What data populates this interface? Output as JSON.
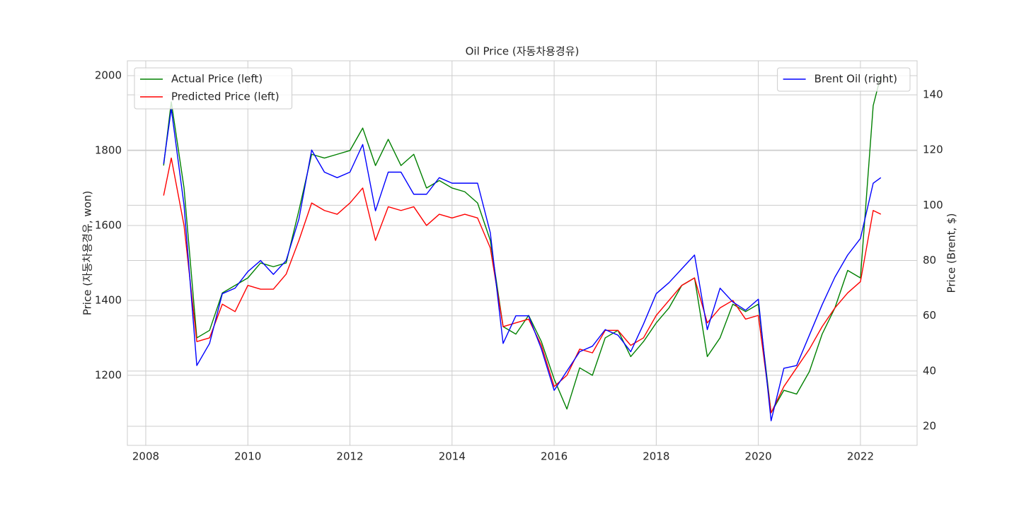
{
  "chart_data": {
    "type": "line",
    "title": "Oil Price (자동차용경유)",
    "ylabel": "Price (자동차용경유, won)",
    "y2label": "Price (Brent, $)",
    "x": [
      2008.35,
      2008.5,
      2008.75,
      2009.0,
      2009.25,
      2009.5,
      2009.75,
      2010.0,
      2010.25,
      2010.5,
      2010.75,
      2011.0,
      2011.25,
      2011.5,
      2011.75,
      2012.0,
      2012.25,
      2012.5,
      2012.75,
      2013.0,
      2013.25,
      2013.5,
      2013.75,
      2014.0,
      2014.25,
      2014.5,
      2014.75,
      2015.0,
      2015.25,
      2015.5,
      2015.75,
      2016.0,
      2016.25,
      2016.5,
      2016.75,
      2017.0,
      2017.25,
      2017.5,
      2017.75,
      2018.0,
      2018.25,
      2018.5,
      2018.75,
      2019.0,
      2019.25,
      2019.5,
      2019.75,
      2020.0,
      2020.25,
      2020.5,
      2020.75,
      2021.0,
      2021.25,
      2021.5,
      2021.75,
      2022.0,
      2022.25,
      2022.4
    ],
    "xlim": [
      2007.64,
      2023.11
    ],
    "xticks": [
      2008,
      2010,
      2012,
      2014,
      2016,
      2018,
      2020,
      2022
    ],
    "ylim": [
      1013,
      2039.6
    ],
    "yticks": [
      1200,
      1400,
      1600,
      1800,
      2000
    ],
    "y2lim": [
      13.1,
      152.3
    ],
    "y2ticks": [
      20,
      40,
      60,
      80,
      100,
      120,
      140
    ],
    "grid": true,
    "legend_loc": "upper left",
    "legend2_loc": "upper right",
    "series": [
      {
        "name": "Actual Price (left)",
        "color": "#008000",
        "axis": "y",
        "values": [
          1760,
          1930,
          1700,
          1300,
          1320,
          1420,
          1440,
          1460,
          1500,
          1490,
          1500,
          1640,
          1790,
          1780,
          1790,
          1800,
          1860,
          1760,
          1830,
          1760,
          1790,
          1700,
          1720,
          1700,
          1690,
          1660,
          1560,
          1330,
          1310,
          1360,
          1290,
          1190,
          1110,
          1220,
          1200,
          1300,
          1320,
          1250,
          1290,
          1340,
          1380,
          1440,
          1460,
          1250,
          1300,
          1390,
          1370,
          1390,
          1100,
          1160,
          1150,
          1210,
          1310,
          1380,
          1480,
          1460,
          1920,
          2000
        ]
      },
      {
        "name": "Predicted Price (left)",
        "color": "#ff0000",
        "axis": "y",
        "values": [
          1680,
          1780,
          1600,
          1290,
          1300,
          1390,
          1370,
          1440,
          1430,
          1430,
          1470,
          1560,
          1660,
          1640,
          1630,
          1660,
          1700,
          1560,
          1650,
          1640,
          1650,
          1600,
          1630,
          1620,
          1630,
          1620,
          1540,
          1330,
          1340,
          1350,
          1280,
          1170,
          1200,
          1270,
          1260,
          1320,
          1320,
          1280,
          1300,
          1360,
          1400,
          1440,
          1460,
          1340,
          1380,
          1400,
          1350,
          1360,
          1100,
          1170,
          1220,
          1270,
          1330,
          1380,
          1420,
          1450,
          1640,
          1630
        ]
      },
      {
        "name": "Brent Oil (right)",
        "color": "#0000ff",
        "axis": "y2",
        "values": [
          115,
          135,
          100,
          42,
          50,
          68,
          70,
          76,
          80,
          75,
          80,
          95,
          120,
          112,
          110,
          112,
          122,
          98,
          112,
          112,
          104,
          104,
          110,
          108,
          108,
          108,
          90,
          50,
          60,
          60,
          48,
          33,
          40,
          47,
          49,
          55,
          53,
          47,
          57,
          68,
          72,
          77,
          82,
          55,
          70,
          65,
          62,
          66,
          22,
          41,
          42,
          53,
          64,
          74,
          82,
          88,
          108,
          110
        ]
      }
    ]
  }
}
